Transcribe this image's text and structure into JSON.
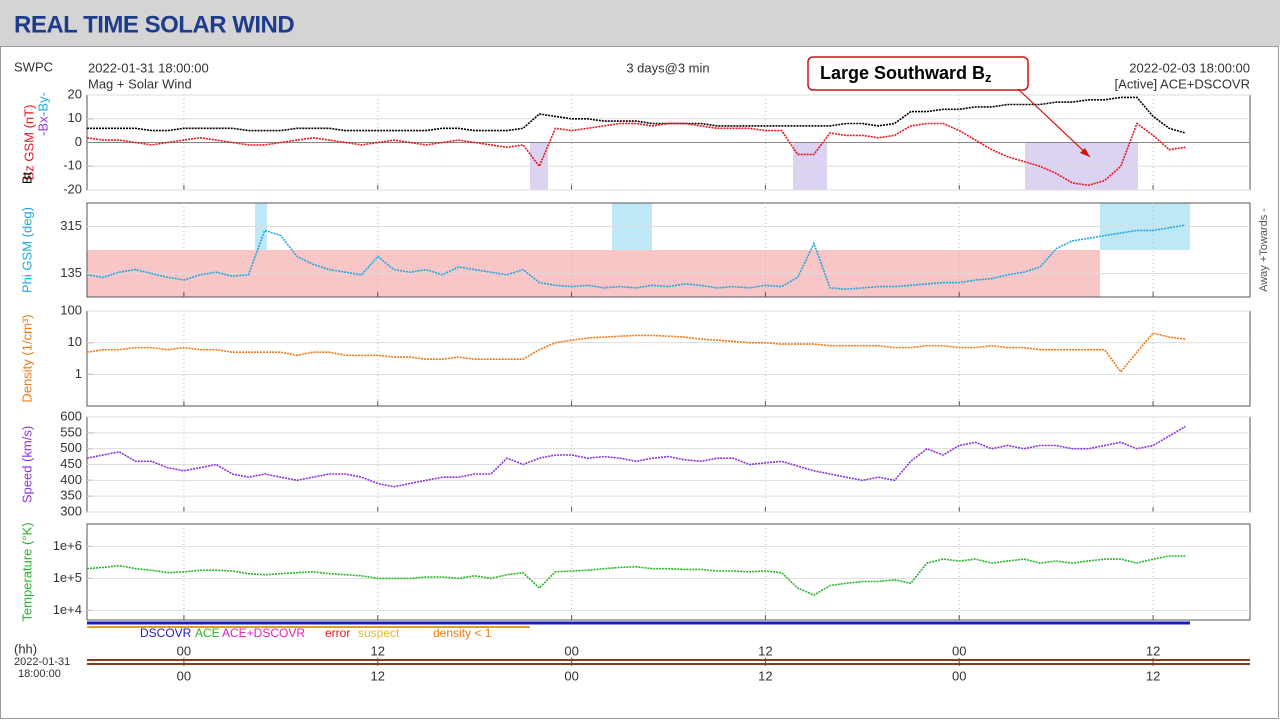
{
  "header": {
    "title": "REAL TIME SOLAR WIND",
    "source": "SWPC",
    "start": "2022-01-31 18:00:00",
    "product": "Mag + Solar Wind",
    "span": "3 days@3 min",
    "end": "2022-02-03 18:00:00",
    "spacecraft": "[Active] ACE+DSCOVR"
  },
  "annotation": {
    "text": "Large Southward B",
    "subscript": "z"
  },
  "chart_data": [
    {
      "type": "line",
      "ylabel": "Bz GSM (nT)",
      "extra_labels": [
        "Bt",
        "-Bx-",
        "-By-"
      ],
      "x": [
        0,
        1,
        2,
        3,
        4,
        5,
        6,
        7,
        8,
        9,
        10,
        11,
        12,
        13,
        14,
        15,
        16,
        17,
        18,
        19,
        20,
        21,
        22,
        23,
        24,
        25,
        26,
        27,
        28,
        29,
        30,
        31,
        32,
        33,
        34,
        35,
        36,
        37,
        38,
        39,
        40,
        41,
        42,
        43,
        44,
        45,
        46,
        47,
        48,
        49,
        50,
        51,
        52,
        53,
        54,
        55,
        56,
        57,
        58,
        59,
        60,
        61,
        62,
        63,
        64,
        65,
        66,
        67,
        68
      ],
      "xlim": [
        0,
        72
      ],
      "ylim": [
        -20,
        20
      ],
      "yticks": [
        -20,
        -10,
        0,
        10,
        20
      ],
      "series": [
        {
          "name": "Bt",
          "color": "#000000",
          "values": [
            6,
            6,
            6,
            6,
            5,
            5,
            6,
            6,
            6,
            6,
            5,
            5,
            5,
            6,
            6,
            6,
            5,
            5,
            5,
            5,
            5,
            5,
            6,
            6,
            5,
            5,
            5,
            6,
            12,
            11,
            10,
            10,
            9,
            9,
            9,
            8,
            8,
            8,
            8,
            7,
            7,
            7,
            7,
            7,
            7,
            7,
            7,
            8,
            8,
            7,
            8,
            13,
            13,
            14,
            14,
            15,
            15,
            16,
            16,
            16,
            17,
            17,
            18,
            18,
            19,
            19,
            11,
            6,
            4
          ]
        },
        {
          "name": "Bz",
          "color": "#e8141e",
          "values": [
            2,
            1,
            1,
            0,
            -1,
            0,
            1,
            2,
            1,
            0,
            -1,
            -1,
            0,
            1,
            2,
            1,
            0,
            -1,
            0,
            1,
            0,
            -1,
            0,
            1,
            0,
            -1,
            -2,
            -1,
            -10,
            6,
            5,
            6,
            7,
            8,
            8,
            7,
            8,
            8,
            7,
            6,
            6,
            6,
            5,
            5,
            -5,
            -5,
            4,
            3,
            3,
            2,
            3,
            7,
            8,
            8,
            5,
            1,
            -3,
            -6,
            -8,
            -10,
            -13,
            -17,
            -18,
            -16,
            -10,
            8,
            3,
            -3,
            -2
          ]
        }
      ]
    },
    {
      "type": "line",
      "ylabel": "Phi GSM (deg)",
      "right_label": "Away +Towards -",
      "x": [
        0,
        1,
        2,
        3,
        4,
        5,
        6,
        7,
        8,
        9,
        10,
        11,
        12,
        13,
        14,
        15,
        16,
        17,
        18,
        19,
        20,
        21,
        22,
        23,
        24,
        25,
        26,
        27,
        28,
        29,
        30,
        31,
        32,
        33,
        34,
        35,
        36,
        37,
        38,
        39,
        40,
        41,
        42,
        43,
        44,
        45,
        46,
        47,
        48,
        49,
        50,
        51,
        52,
        53,
        54,
        55,
        56,
        57,
        58,
        59,
        60,
        61,
        62,
        63,
        64,
        65,
        66,
        67,
        68
      ],
      "xlim": [
        0,
        72
      ],
      "ylim": [
        45,
        405
      ],
      "yticks": [
        135,
        315
      ],
      "series": [
        {
          "name": "Phi",
          "color": "#1ea8e0",
          "values": [
            130,
            120,
            140,
            150,
            135,
            120,
            110,
            130,
            140,
            125,
            130,
            300,
            280,
            200,
            170,
            150,
            140,
            130,
            200,
            150,
            140,
            150,
            130,
            160,
            150,
            140,
            130,
            150,
            100,
            90,
            85,
            90,
            80,
            85,
            80,
            90,
            85,
            95,
            90,
            80,
            85,
            80,
            90,
            85,
            120,
            250,
            80,
            75,
            80,
            85,
            85,
            90,
            95,
            100,
            100,
            110,
            115,
            130,
            140,
            160,
            230,
            260,
            270,
            280,
            290,
            300,
            300,
            310,
            320
          ]
        }
      ]
    },
    {
      "type": "line",
      "ylabel": "Density (1/cm³)",
      "log": true,
      "x": [
        0,
        1,
        2,
        3,
        4,
        5,
        6,
        7,
        8,
        9,
        10,
        11,
        12,
        13,
        14,
        15,
        16,
        17,
        18,
        19,
        20,
        21,
        22,
        23,
        24,
        25,
        26,
        27,
        28,
        29,
        30,
        31,
        32,
        33,
        34,
        35,
        36,
        37,
        38,
        39,
        40,
        41,
        42,
        43,
        44,
        45,
        46,
        47,
        48,
        49,
        50,
        51,
        52,
        53,
        54,
        55,
        56,
        57,
        58,
        59,
        60,
        61,
        62,
        63,
        64,
        65,
        66,
        67,
        68
      ],
      "xlim": [
        0,
        72
      ],
      "ylim": [
        0.1,
        100
      ],
      "yticks": [
        1,
        10,
        100
      ],
      "series": [
        {
          "name": "Density",
          "color": "#f07814",
          "values": [
            5,
            6,
            6,
            7,
            7,
            6,
            7,
            6,
            6,
            5,
            5,
            5,
            5,
            4,
            5,
            5,
            4,
            4,
            4,
            3.5,
            3.5,
            3,
            3,
            3.5,
            3,
            3,
            3,
            3,
            6,
            10,
            12,
            14,
            15,
            16,
            17,
            17,
            16,
            15,
            13,
            12,
            11,
            10,
            10,
            9,
            9,
            9,
            8,
            8,
            8,
            8,
            7,
            7,
            8,
            8,
            7,
            7,
            8,
            7,
            7,
            6,
            6,
            6,
            6,
            6,
            1.2,
            5,
            20,
            15,
            13
          ]
        }
      ]
    },
    {
      "type": "line",
      "ylabel": "Speed (km/s)",
      "x": [
        0,
        1,
        2,
        3,
        4,
        5,
        6,
        7,
        8,
        9,
        10,
        11,
        12,
        13,
        14,
        15,
        16,
        17,
        18,
        19,
        20,
        21,
        22,
        23,
        24,
        25,
        26,
        27,
        28,
        29,
        30,
        31,
        32,
        33,
        34,
        35,
        36,
        37,
        38,
        39,
        40,
        41,
        42,
        43,
        44,
        45,
        46,
        47,
        48,
        49,
        50,
        51,
        52,
        53,
        54,
        55,
        56,
        57,
        58,
        59,
        60,
        61,
        62,
        63,
        64,
        65,
        66,
        67,
        68
      ],
      "xlim": [
        0,
        72
      ],
      "ylim": [
        300,
        600
      ],
      "yticks": [
        300,
        350,
        400,
        450,
        500,
        550,
        600
      ],
      "series": [
        {
          "name": "Speed",
          "color": "#8c32dc",
          "values": [
            470,
            480,
            490,
            460,
            460,
            440,
            430,
            440,
            450,
            420,
            410,
            420,
            410,
            400,
            410,
            420,
            420,
            410,
            390,
            380,
            390,
            400,
            410,
            410,
            420,
            420,
            470,
            450,
            470,
            480,
            480,
            470,
            475,
            470,
            460,
            470,
            475,
            465,
            460,
            470,
            470,
            450,
            455,
            460,
            445,
            430,
            420,
            410,
            400,
            410,
            400,
            460,
            500,
            480,
            510,
            520,
            500,
            510,
            500,
            510,
            510,
            500,
            500,
            510,
            520,
            500,
            510,
            540,
            570
          ]
        }
      ]
    },
    {
      "type": "line",
      "ylabel": "Temperature (°K)",
      "log": true,
      "x": [
        0,
        1,
        2,
        3,
        4,
        5,
        6,
        7,
        8,
        9,
        10,
        11,
        12,
        13,
        14,
        15,
        16,
        17,
        18,
        19,
        20,
        21,
        22,
        23,
        24,
        25,
        26,
        27,
        28,
        29,
        30,
        31,
        32,
        33,
        34,
        35,
        36,
        37,
        38,
        39,
        40,
        41,
        42,
        43,
        44,
        45,
        46,
        47,
        48,
        49,
        50,
        51,
        52,
        53,
        54,
        55,
        56,
        57,
        58,
        59,
        60,
        61,
        62,
        63,
        64,
        65,
        66,
        67,
        68
      ],
      "xlim": [
        0,
        72
      ],
      "ylim": [
        5000,
        5000000
      ],
      "yticks": [
        {
          "value": 10000,
          "label": "1e+4"
        },
        {
          "value": 100000,
          "label": "1e+5"
        },
        {
          "value": 1000000,
          "label": "1e+6"
        }
      ],
      "xticks": [
        {
          "value": 6,
          "label": "00"
        },
        {
          "value": 18,
          "label": "12"
        },
        {
          "value": 30,
          "label": "00"
        },
        {
          "value": 42,
          "label": "12"
        },
        {
          "value": 54,
          "label": "00"
        },
        {
          "value": 66,
          "label": "12"
        }
      ],
      "series": [
        {
          "name": "Temperature",
          "color": "#28b428",
          "values": [
            200000,
            220000,
            250000,
            200000,
            180000,
            150000,
            160000,
            180000,
            180000,
            170000,
            140000,
            130000,
            140000,
            150000,
            160000,
            140000,
            130000,
            120000,
            100000,
            100000,
            100000,
            110000,
            110000,
            100000,
            120000,
            100000,
            130000,
            150000,
            50000,
            160000,
            170000,
            180000,
            200000,
            220000,
            230000,
            200000,
            200000,
            190000,
            190000,
            170000,
            170000,
            160000,
            170000,
            150000,
            50000,
            30000,
            60000,
            70000,
            80000,
            80000,
            90000,
            70000,
            300000,
            400000,
            350000,
            400000,
            300000,
            350000,
            400000,
            300000,
            350000,
            300000,
            350000,
            400000,
            400000,
            300000,
            400000,
            500000,
            500000
          ]
        }
      ]
    }
  ],
  "legend": [
    {
      "name": "DSCOVR",
      "color": "#1a1acc"
    },
    {
      "name": "ACE",
      "color": "#28b428"
    },
    {
      "name": "ACE+DSCOVR",
      "color": "#e020c8"
    },
    {
      "name": "error",
      "color": "#e8141e"
    },
    {
      "name": "suspect",
      "color": "#e0c020"
    },
    {
      "name": "density < 1",
      "color": "#f07814"
    }
  ],
  "timeline": {
    "unit": "(hh)",
    "date": "2022-01-31",
    "time": "18:00:00",
    "xlim": [
      0,
      72
    ],
    "xticks": [
      {
        "value": 6,
        "label": "00"
      },
      {
        "value": 18,
        "label": "12"
      },
      {
        "value": 30,
        "label": "00"
      },
      {
        "value": 42,
        "label": "12"
      },
      {
        "value": 54,
        "label": "00"
      },
      {
        "value": 66,
        "label": "12"
      }
    ]
  }
}
